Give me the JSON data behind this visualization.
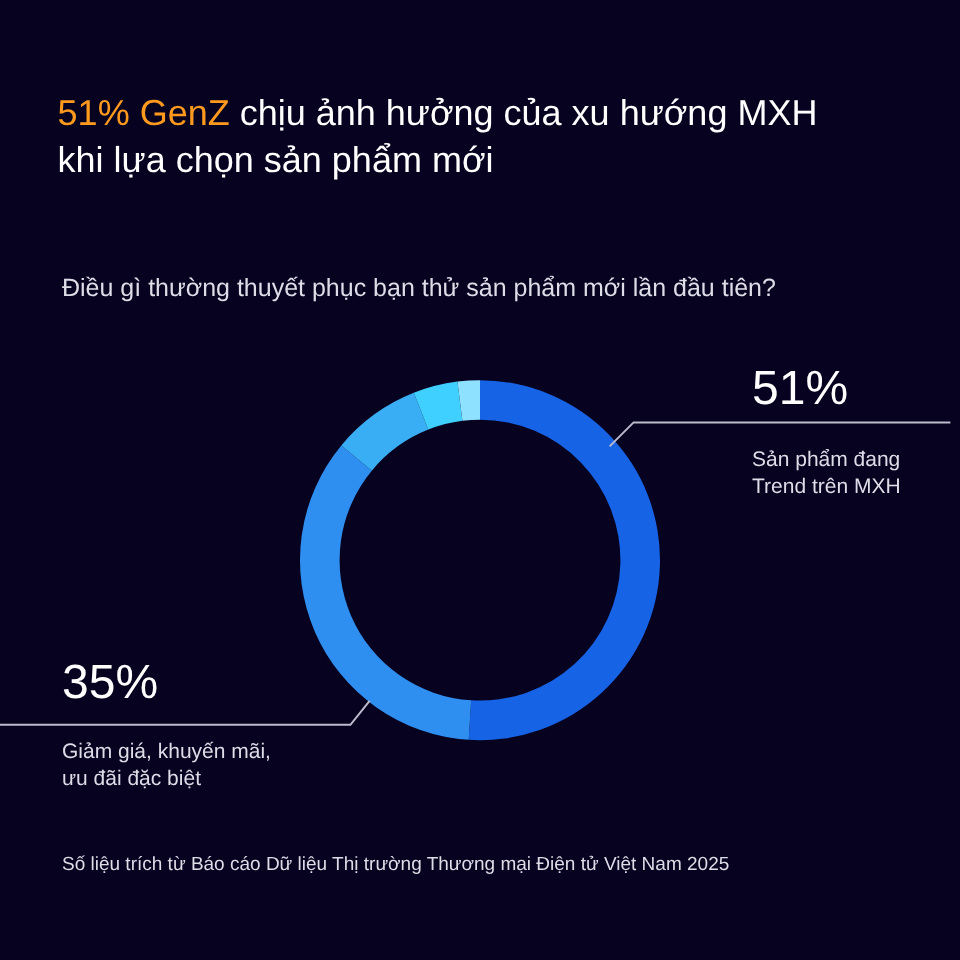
{
  "chart_data": {
    "type": "donut",
    "title": "51% GenZ chịu ảnh hưởng của xu hướng MXH khi lựa chọn sản phẩm mới",
    "subtitle": "Điều gì thường thuyết phục bạn thử sản phẩm mới lần đầu tiên?",
    "categories": [
      "Sản phẩm đang Trend trên MXH",
      "Giảm giá, khuyến mãi, ưu đãi đặc biệt",
      null,
      null,
      null
    ],
    "values": [
      51,
      35,
      8,
      4,
      2
    ],
    "value_labels": [
      "51%",
      "35%",
      null,
      null,
      null
    ],
    "colors": [
      "#1763e6",
      "#2f8ff0",
      "#3aaef5",
      "#3fd0ff",
      "#8fe2ff"
    ],
    "annotations": [
      "Số liệu trích từ Báo cáo Dữ liệu Thị trường Thương mại Điện tử Việt Nam 2025"
    ],
    "legend": false
  }
}
